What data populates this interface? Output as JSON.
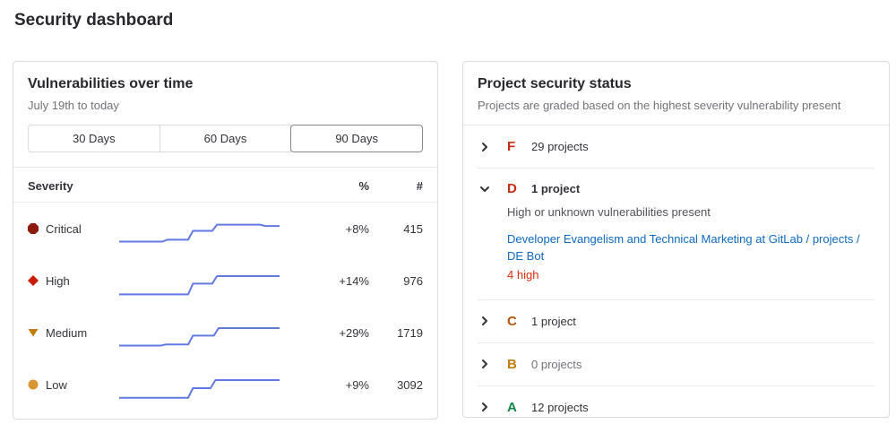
{
  "page": {
    "title": "Security dashboard"
  },
  "colors": {
    "sparkline": "#617ae2",
    "link": "#1068bf",
    "severity_critical": "#8d1b0d",
    "severity_high": "#c91c00",
    "severity_medium": "#c17d10",
    "severity_low": "#d99530",
    "grade_f": "#c62d15",
    "grade_d": "#c62d15",
    "grade_c": "#b3540c",
    "grade_b": "#c17d10",
    "grade_a": "#108548",
    "vuln_count_red": "#dd2b0e"
  },
  "vulnerabilities_panel": {
    "title": "Vulnerabilities over time",
    "subtitle": "July 19th to today",
    "day_filters": [
      {
        "label": "30 Days",
        "selected": false
      },
      {
        "label": "60 Days",
        "selected": false
      },
      {
        "label": "90 Days",
        "selected": true
      }
    ],
    "table": {
      "headers": {
        "severity": "Severity",
        "percent": "%",
        "count": "#"
      },
      "rows": [
        {
          "severity": "Critical",
          "icon": "severity-critical-icon",
          "icon_color": "#8d1b0d",
          "percent": "+8%",
          "count": "415"
        },
        {
          "severity": "High",
          "icon": "severity-high-icon",
          "icon_color": "#c91c00",
          "percent": "+14%",
          "count": "976"
        },
        {
          "severity": "Medium",
          "icon": "severity-medium-icon",
          "icon_color": "#c17d10",
          "percent": "+29%",
          "count": "1719"
        },
        {
          "severity": "Low",
          "icon": "severity-low-icon",
          "icon_color": "#d99530",
          "percent": "+9%",
          "count": "3092"
        }
      ]
    }
  },
  "project_status_panel": {
    "title": "Project security status",
    "subtitle": "Projects are graded based on the highest severity vulnerability present",
    "grades": [
      {
        "letter": "F",
        "color": "#c62d15",
        "text": "29 projects",
        "expanded": false
      },
      {
        "letter": "D",
        "color": "#c62d15",
        "text": "1 project",
        "expanded": true,
        "description": "High or unknown vulnerabilities present",
        "project_link": "Developer Evangelism and Technical Marketing at GitLab / projects / DE Bot",
        "vulnerability_count": "4 high"
      },
      {
        "letter": "C",
        "color": "#b3540c",
        "text": "1 project",
        "expanded": false
      },
      {
        "letter": "B",
        "color": "#c17d10",
        "text": "0 projects",
        "expanded": false,
        "muted": true
      },
      {
        "letter": "A",
        "color": "#108548",
        "text": "12 projects",
        "expanded": false
      }
    ]
  },
  "chart_data": {
    "type": "line",
    "title": "Vulnerabilities over time",
    "x_range": "July 19th to today (90 days)",
    "line_color": "#617ae2",
    "grid": false,
    "note": "Sparkline shapes estimated; points are [x 0-100, y 0-100 bottom-up]",
    "series": [
      {
        "name": "Critical",
        "change_percent": "+8%",
        "current_count": 415,
        "points": [
          [
            0,
            15
          ],
          [
            27,
            15
          ],
          [
            30,
            22
          ],
          [
            43,
            22
          ],
          [
            46,
            55
          ],
          [
            58,
            55
          ],
          [
            61,
            78
          ],
          [
            88,
            78
          ],
          [
            91,
            73
          ],
          [
            100,
            73
          ]
        ]
      },
      {
        "name": "High",
        "change_percent": "+14%",
        "current_count": 976,
        "points": [
          [
            0,
            12
          ],
          [
            43,
            12
          ],
          [
            46,
            52
          ],
          [
            58,
            52
          ],
          [
            61,
            80
          ],
          [
            100,
            80
          ]
        ]
      },
      {
        "name": "Medium",
        "change_percent": "+29%",
        "current_count": 1719,
        "points": [
          [
            0,
            15
          ],
          [
            26,
            15
          ],
          [
            29,
            19
          ],
          [
            43,
            19
          ],
          [
            46,
            52
          ],
          [
            59,
            52
          ],
          [
            62,
            80
          ],
          [
            100,
            80
          ]
        ]
      },
      {
        "name": "Low",
        "change_percent": "+9%",
        "current_count": 3092,
        "points": [
          [
            0,
            14
          ],
          [
            43,
            14
          ],
          [
            46,
            50
          ],
          [
            57,
            50
          ],
          [
            60,
            80
          ],
          [
            100,
            80
          ]
        ]
      }
    ]
  }
}
